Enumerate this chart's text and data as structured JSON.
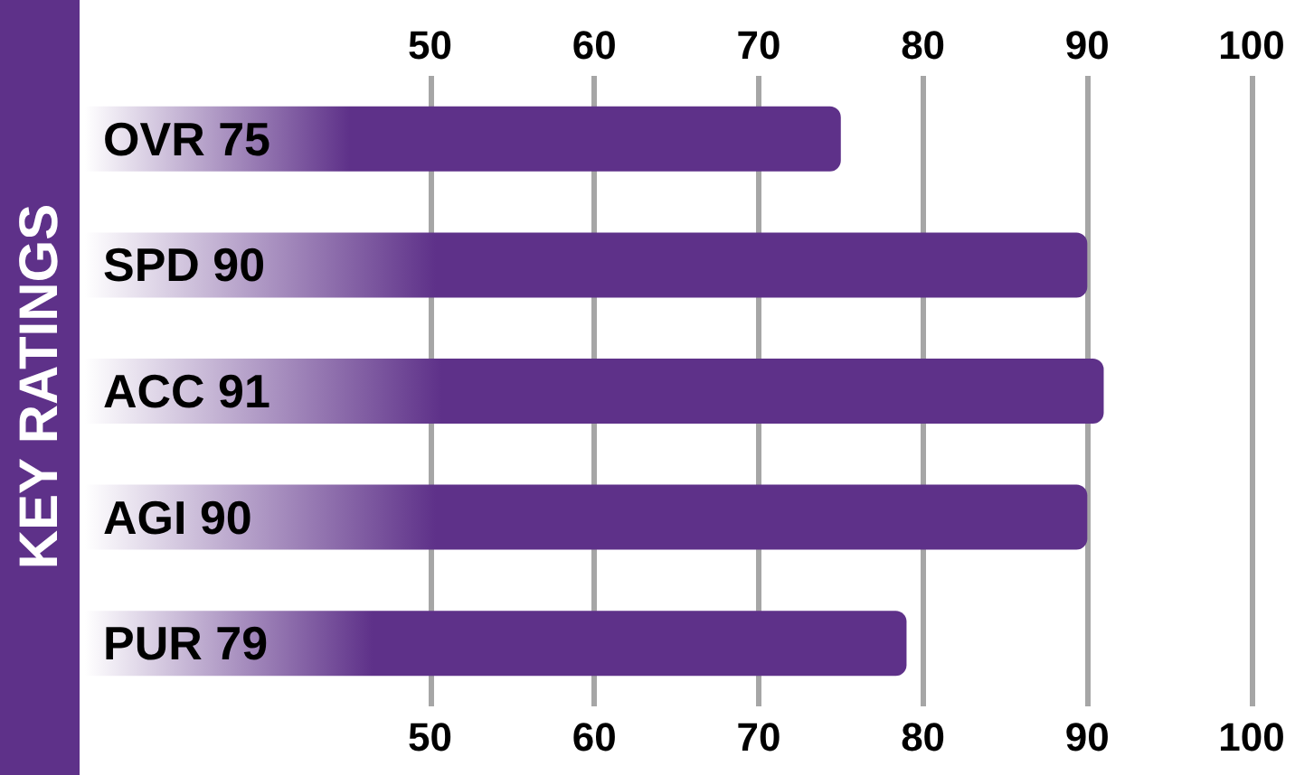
{
  "chart_data": {
    "type": "bar",
    "orientation": "horizontal",
    "ylabel": "KEY RATINGS",
    "categories": [
      "OVR 75",
      "SPD 90",
      "ACC 91",
      "AGI 90",
      "PUR 79"
    ],
    "values": [
      75,
      90,
      91,
      90,
      79
    ],
    "color": "#5e3189",
    "xlim": [
      29,
      100
    ],
    "xticks": [
      50,
      60,
      70,
      80,
      90,
      100
    ],
    "x2lim": [
      29,
      100
    ],
    "x2ticks": [
      50,
      60,
      70,
      80,
      90,
      100
    ],
    "grid": "x"
  }
}
